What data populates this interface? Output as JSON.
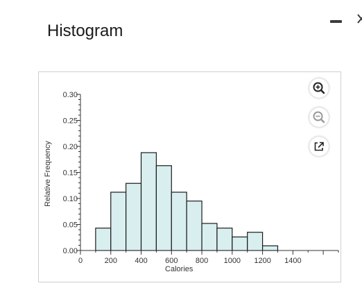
{
  "panel": {
    "title": "Histogram"
  },
  "toolbar": {
    "zoom_in_icon": "zoom-in-icon",
    "zoom_out_icon": "zoom-out-icon",
    "popout_icon": "external-link-icon"
  },
  "colors": {
    "bar_fill": "#d9efef",
    "bar_stroke": "#1a1a1a",
    "axis": "#333333"
  },
  "chart_data": {
    "type": "bar",
    "xlabel": "Calories",
    "ylabel": "Relative Frequency",
    "x_ticks": [
      "0",
      "200",
      "400",
      "600",
      "800",
      "1000",
      "1200",
      "1400"
    ],
    "y_ticks": [
      "0.00",
      "0.05",
      "0.10",
      "0.15",
      "0.20",
      "0.25",
      "0.30"
    ],
    "xlim": [
      0,
      1700
    ],
    "ylim": [
      0,
      0.3
    ],
    "bin_width": 100,
    "bins": [
      {
        "start": 100,
        "end": 200,
        "value": 0.043
      },
      {
        "start": 200,
        "end": 300,
        "value": 0.112
      },
      {
        "start": 300,
        "end": 400,
        "value": 0.129
      },
      {
        "start": 400,
        "end": 500,
        "value": 0.188
      },
      {
        "start": 500,
        "end": 600,
        "value": 0.163
      },
      {
        "start": 600,
        "end": 700,
        "value": 0.112
      },
      {
        "start": 700,
        "end": 800,
        "value": 0.095
      },
      {
        "start": 800,
        "end": 900,
        "value": 0.052
      },
      {
        "start": 900,
        "end": 1000,
        "value": 0.043
      },
      {
        "start": 1000,
        "end": 1100,
        "value": 0.026
      },
      {
        "start": 1100,
        "end": 1200,
        "value": 0.035
      },
      {
        "start": 1200,
        "end": 1300,
        "value": 0.009
      }
    ]
  }
}
